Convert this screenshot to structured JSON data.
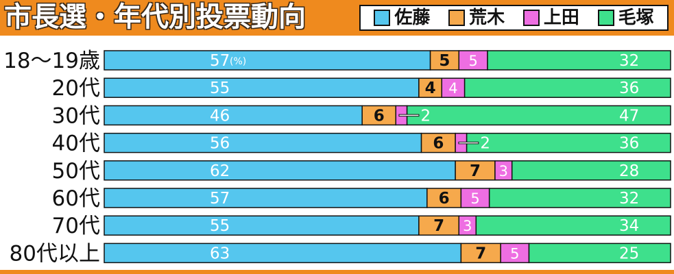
{
  "chart_data": {
    "type": "bar",
    "orientation": "horizontal",
    "stacked": true,
    "title": "市長選・年代別投票動向",
    "unit_label": "(%)",
    "xlim": [
      0,
      100
    ],
    "grid": false,
    "legend_position": "top-right",
    "categories": [
      "18～19歳",
      "20代",
      "30代",
      "40代",
      "50代",
      "60代",
      "70代",
      "80代以上"
    ],
    "series": [
      {
        "name": "佐藤",
        "color": "#55c6ee",
        "values": [
          57,
          55,
          46,
          56,
          62,
          57,
          55,
          63
        ]
      },
      {
        "name": "荒木",
        "color": "#f6a94c",
        "values": [
          5,
          4,
          6,
          6,
          7,
          6,
          7,
          7
        ]
      },
      {
        "name": "上田",
        "color": "#ee6ee2",
        "values": [
          5,
          4,
          2,
          2,
          3,
          5,
          3,
          5
        ]
      },
      {
        "name": "毛塚",
        "color": "#3ee08c",
        "values": [
          32,
          36,
          47,
          36,
          28,
          32,
          34,
          25
        ]
      }
    ]
  },
  "colors": {
    "header": "#ef8a1e",
    "border": "#111111"
  }
}
